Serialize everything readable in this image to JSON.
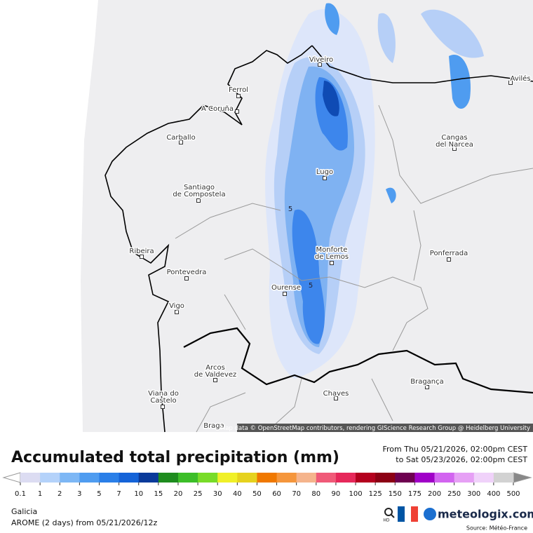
{
  "map": {
    "cities": [
      {
        "lines": [
          "Viveiro"
        ]
      },
      {
        "lines": [
          "Ferrol"
        ]
      },
      {
        "lines": [
          "A Coruña"
        ]
      },
      {
        "lines": [
          "Carballo"
        ]
      },
      {
        "lines": [
          "Lugo"
        ]
      },
      {
        "lines": [
          "Santiago",
          "de Compostela"
        ]
      },
      {
        "lines": [
          "Ribeira"
        ]
      },
      {
        "lines": [
          "Pontevedra"
        ]
      },
      {
        "lines": [
          "Vigo"
        ]
      },
      {
        "lines": [
          "Ourense"
        ]
      },
      {
        "lines": [
          "Monforte",
          "de Lemos"
        ]
      },
      {
        "lines": [
          "Cangas",
          "del Narcea"
        ]
      },
      {
        "lines": [
          "Ponferrada"
        ]
      },
      {
        "lines": [
          "Avilés"
        ]
      },
      {
        "lines": [
          "Arcos",
          "de Valdevez"
        ]
      },
      {
        "lines": [
          "Viana do",
          "Castelo"
        ]
      },
      {
        "lines": [
          "Chaves"
        ]
      },
      {
        "lines": [
          "Bragança"
        ]
      },
      {
        "lines": [
          "Braga"
        ]
      }
    ],
    "contour_labels": [
      "5",
      "5"
    ],
    "attribution": "Map data © OpenStreetMap contributors, rendering GIScience Research Group @ Heidelberg University"
  },
  "legend": {
    "title": "Accumulated total precipitation (mm)",
    "period_from": "From Thu 05/21/2026, 02:00pm CEST",
    "period_to": "to Sat 05/23/2026, 02:00pm CEST",
    "ticks": [
      "0.1",
      "1",
      "2",
      "3",
      "5",
      "7",
      "10",
      "15",
      "20",
      "25",
      "30",
      "40",
      "50",
      "60",
      "70",
      "80",
      "90",
      "100",
      "125",
      "150",
      "175",
      "200",
      "250",
      "300",
      "400",
      "500"
    ],
    "colors": [
      "#dcdcf2",
      "#b4d2fa",
      "#7db7f5",
      "#4f9cf0",
      "#2a7fe8",
      "#1463d8",
      "#0a3a9a",
      "#1e8c1e",
      "#3cbe28",
      "#78dc28",
      "#f0f028",
      "#e6d21e",
      "#f07800",
      "#f5963c",
      "#f5b48c",
      "#f05a78",
      "#e6285a",
      "#b4001e",
      "#8c0014",
      "#6e0050",
      "#a000c8",
      "#d264f0",
      "#e6a0f5",
      "#f0d2fa",
      "#d2d2d2"
    ]
  },
  "footer": {
    "region": "Galicia",
    "model": "AROME (2 days) from 05/21/2026/12z",
    "hd": "HD",
    "brand": "meteologix.com",
    "source": "Source: Météo-France"
  }
}
